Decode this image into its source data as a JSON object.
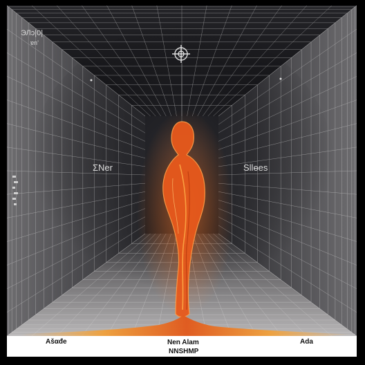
{
  "labels": {
    "top_left": "ЭЛɔ|0|",
    "top_left_small": "ɐn’",
    "left_wall": "ΣNer",
    "right_wall": "Sllɵes",
    "bottom_left": "Ašαđe",
    "bottom_center_line1": "Nen Alam",
    "bottom_center_line2": "NNSHMP",
    "bottom_right": "Ada"
  },
  "icons": [
    "ornament-icon"
  ],
  "colors": {
    "frame": "#000000",
    "background": "#ffffff",
    "wall_dark": "#1c1c1f",
    "wall_light": "#8e8b8c",
    "grid": "#d8d8d8",
    "figure": "#e8591c",
    "figure_glow": "#ffb24a"
  }
}
